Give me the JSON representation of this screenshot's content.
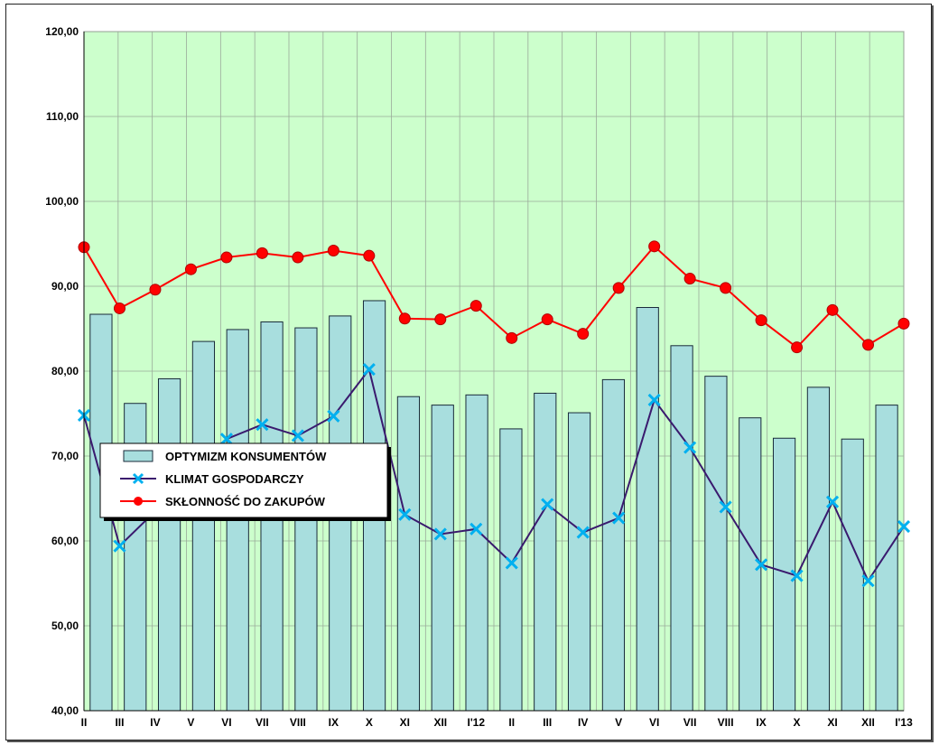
{
  "chart_data": {
    "type": "bar+line",
    "title": "",
    "xlabel": "",
    "ylabel": "",
    "ylim": [
      40,
      120
    ],
    "y_ticks": [
      "40,00",
      "50,00",
      "60,00",
      "70,00",
      "80,00",
      "90,00",
      "100,00",
      "110,00",
      "120,00"
    ],
    "grid": true,
    "legend_position": "center-left",
    "categories": [
      "II",
      "III",
      "IV",
      "V",
      "VI",
      "VII",
      "VIII",
      "IX",
      "X",
      "XI",
      "XII",
      "I'12",
      "II",
      "III",
      "IV",
      "V",
      "VI",
      "VII",
      "VIII",
      "IX",
      "X",
      "XI",
      "XII",
      "I'13"
    ],
    "series": [
      {
        "name": "OPTYMIZM KONSUMENTÓW",
        "kind": "bar",
        "color": "#a8dede",
        "values": [
          86.7,
          76.2,
          79.1,
          83.5,
          84.9,
          85.8,
          85.1,
          86.5,
          88.3,
          77.0,
          76.0,
          77.2,
          73.2,
          77.4,
          75.1,
          79.0,
          87.5,
          83.0,
          79.4,
          74.5,
          72.1,
          78.1,
          72.0,
          76.0
        ]
      },
      {
        "name": "KLIMAT GOSPODARCZY",
        "kind": "line",
        "color": "#3a1a6e",
        "marker": "x",
        "marker_color": "#00b0f0",
        "values": [
          74.8,
          59.4,
          63.5,
          68.5,
          72.0,
          73.7,
          72.4,
          74.7,
          80.2,
          63.1,
          60.8,
          61.4,
          57.4,
          64.3,
          61.0,
          62.7,
          76.6,
          71.0,
          64.0,
          57.2,
          55.9,
          64.6,
          55.3,
          61.7
        ]
      },
      {
        "name": "SKŁONNOŚĆ DO ZAKUPÓW",
        "kind": "line",
        "color": "#ff0000",
        "marker": "circle",
        "marker_color": "#ff0000",
        "values": [
          94.6,
          87.4,
          89.6,
          92.0,
          93.4,
          93.9,
          93.4,
          94.2,
          93.6,
          86.2,
          86.1,
          87.7,
          83.9,
          86.1,
          84.4,
          89.8,
          94.7,
          90.9,
          89.8,
          86.0,
          82.8,
          87.2,
          83.1,
          85.6
        ]
      }
    ],
    "colors": {
      "plot_bg": "#ccffcc",
      "grid": "#9aaa9a",
      "bar_border": "#1a2a3a"
    }
  }
}
